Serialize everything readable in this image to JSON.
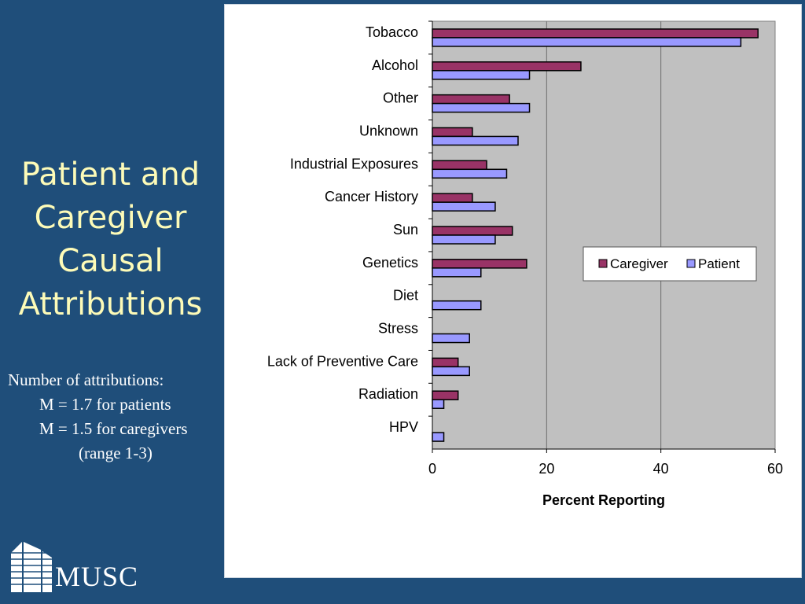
{
  "sidebar": {
    "title_lines": [
      "Patient and",
      "Caregiver",
      "Causal",
      "Attributions"
    ],
    "notes": [
      "Number of attributions:",
      "M = 1.7 for patients",
      "M = 1.5 for caregivers",
      "(range 1-3)"
    ]
  },
  "logo": {
    "text": "MUSC",
    "icon": "building-icon"
  },
  "colors": {
    "caregiver": "#993366",
    "patient": "#9999ff",
    "plot_bg": "#c0c0c0",
    "background": "#1f4e7a",
    "title": "#fdfbb8"
  },
  "chart_data": {
    "type": "bar",
    "orientation": "horizontal",
    "title": "",
    "xlabel": "Percent Reporting",
    "ylabel": "",
    "xlim": [
      0,
      60
    ],
    "xticks": [
      0,
      20,
      40,
      60
    ],
    "categories": [
      "Tobacco",
      "Alcohol",
      "Other",
      "Unknown",
      "Industrial Exposures",
      "Cancer History",
      "Sun",
      "Genetics",
      "Diet",
      "Stress",
      "Lack of Preventive Care",
      "Radiation",
      "HPV"
    ],
    "series": [
      {
        "name": "Caregiver",
        "values": [
          57,
          26,
          13.5,
          7,
          9.5,
          7,
          14,
          16.5,
          0,
          0,
          4.5,
          4.5,
          0
        ]
      },
      {
        "name": "Patient",
        "values": [
          54,
          17,
          17,
          15,
          13,
          11,
          11,
          8.5,
          8.5,
          6.5,
          6.5,
          2,
          2
        ]
      }
    ],
    "legend": {
      "position": "right-middle",
      "entries": [
        "Caregiver",
        "Patient"
      ]
    },
    "grid": true
  }
}
